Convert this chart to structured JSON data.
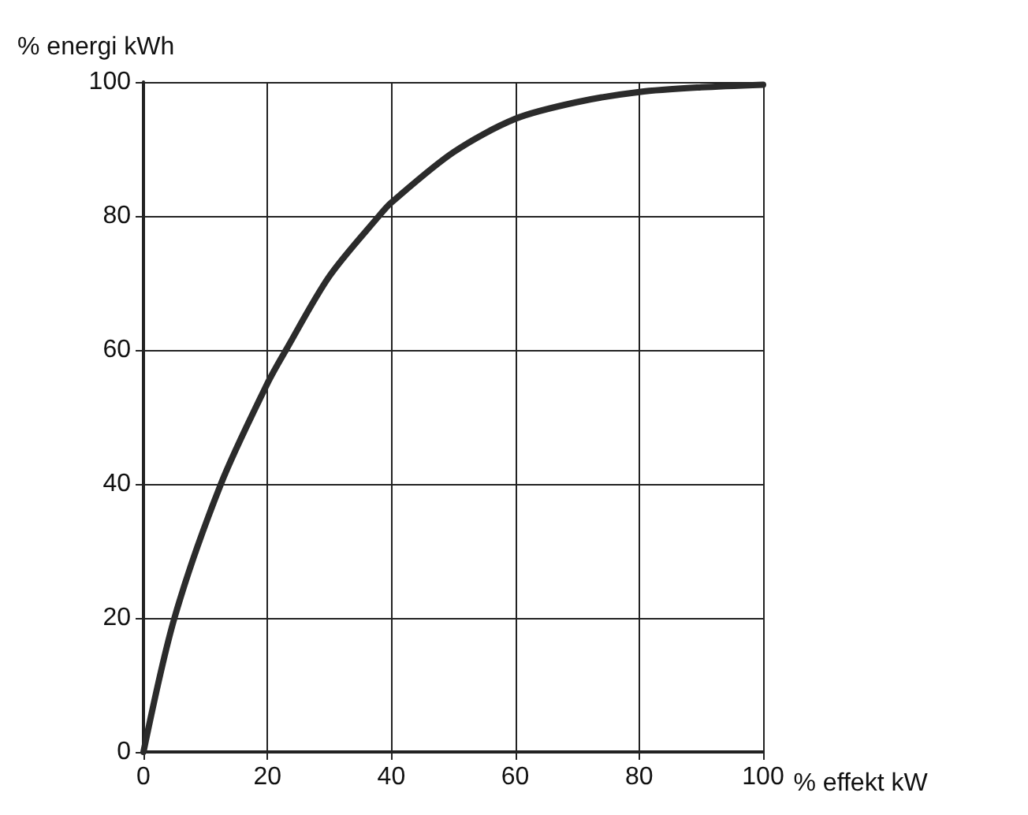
{
  "chart_data": {
    "type": "line",
    "xlabel": "% effekt kW",
    "ylabel": "% energi kWh",
    "x": [
      0,
      5,
      12.5,
      20,
      23,
      30,
      38,
      40,
      50,
      60,
      70,
      80,
      90,
      100
    ],
    "series": [
      {
        "color": "#2b2b2b",
        "values": [
          0,
          20,
          40,
          55,
          60,
          71,
          80,
          82,
          89.5,
          94.5,
          97,
          98.5,
          99.2,
          99.6
        ]
      }
    ],
    "xlim": [
      0,
      100
    ],
    "ylim": [
      0,
      100
    ],
    "xticks": [
      0,
      20,
      40,
      60,
      80,
      100
    ],
    "yticks": [
      0,
      20,
      40,
      60,
      80,
      100
    ],
    "grid": true,
    "marker": "none",
    "line_style": "solid"
  }
}
